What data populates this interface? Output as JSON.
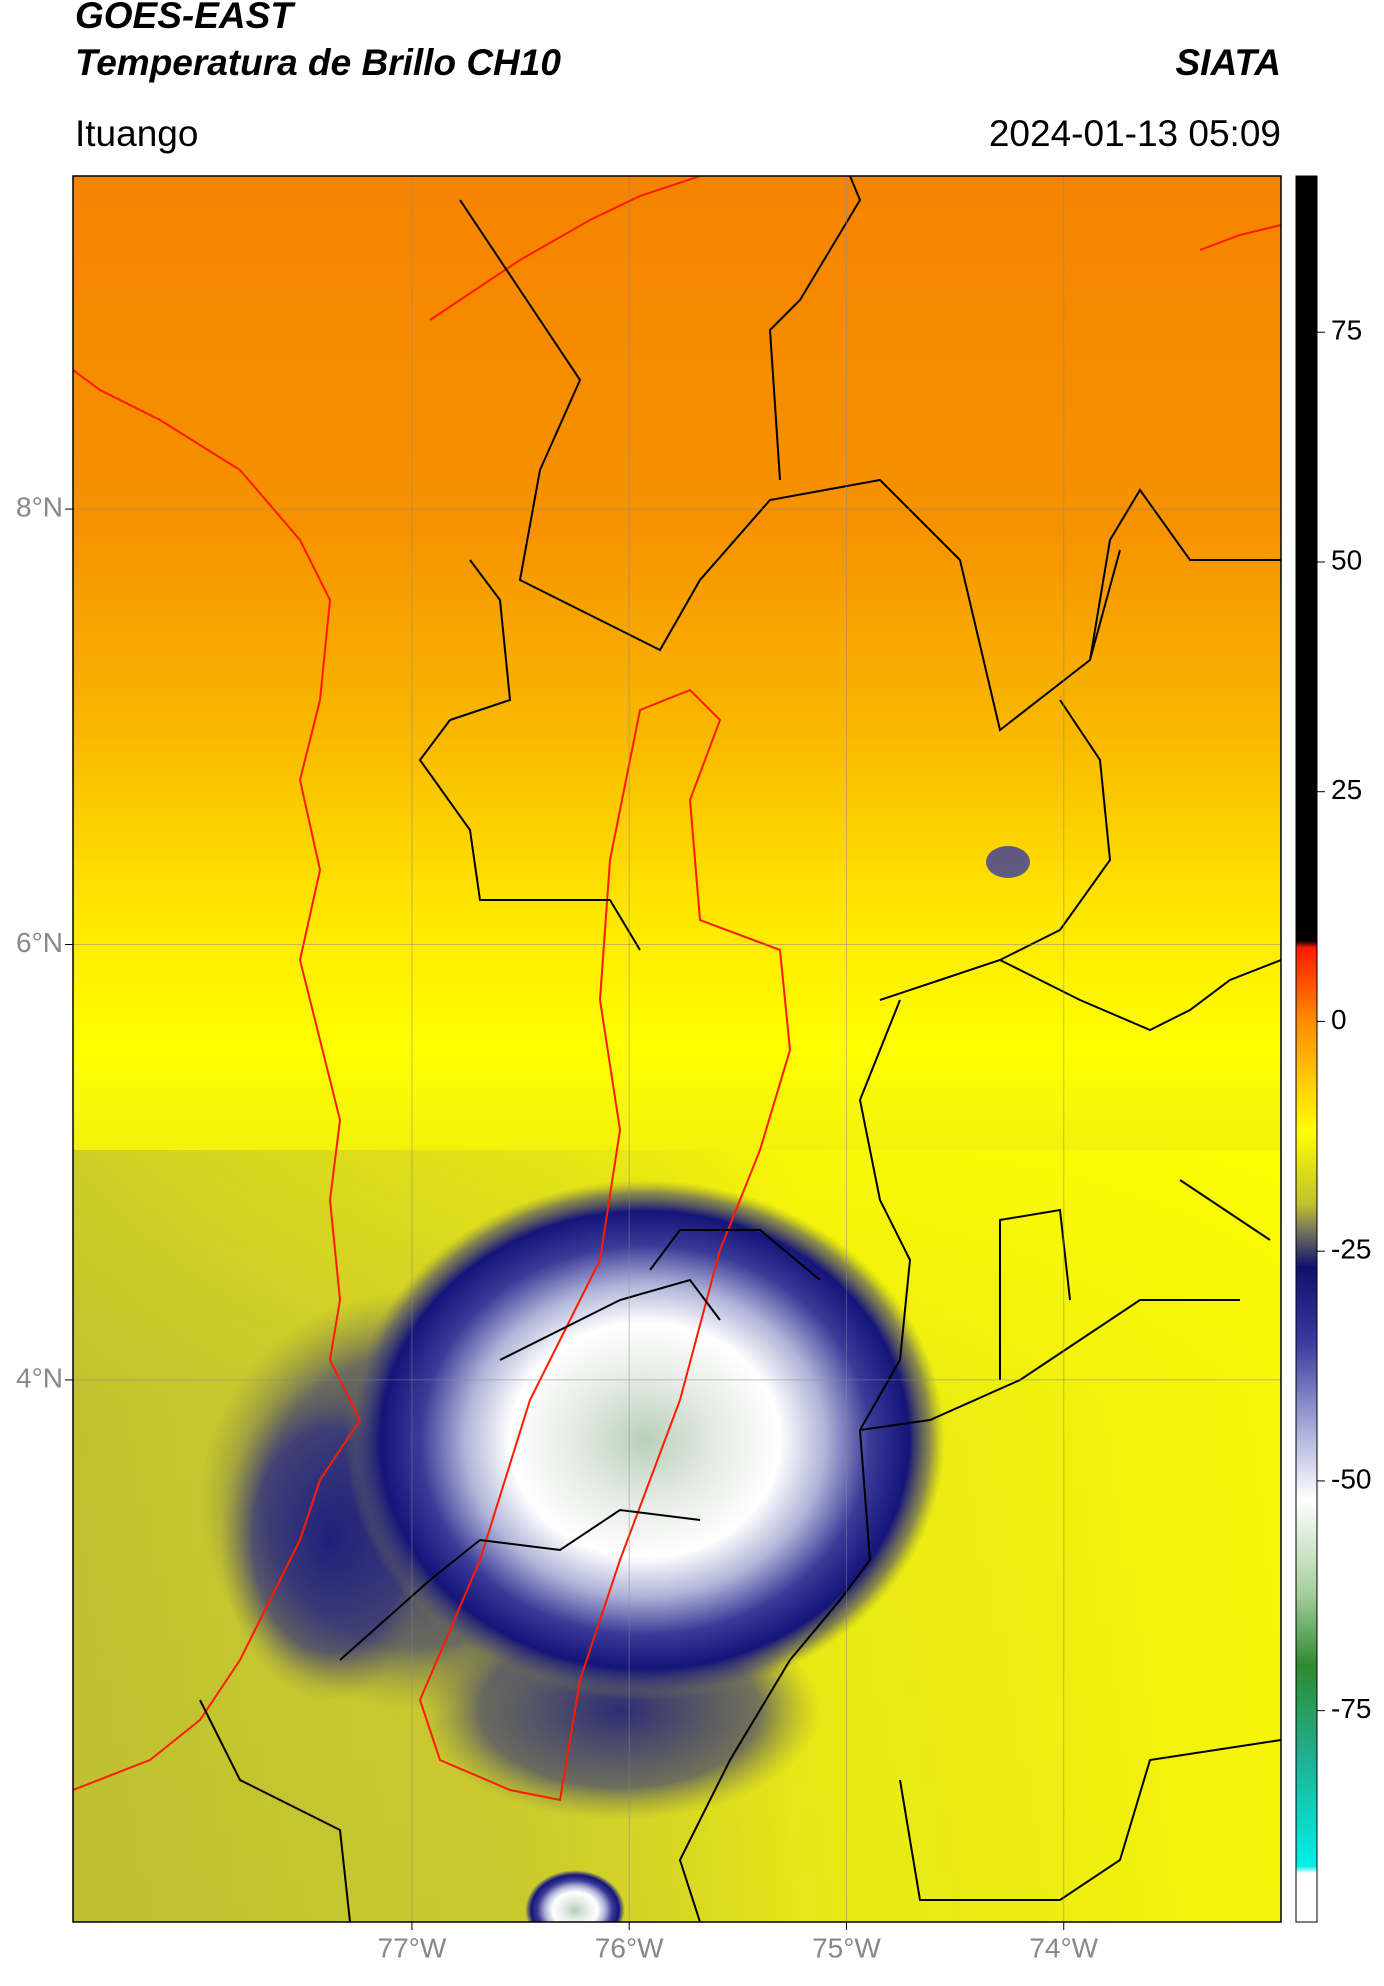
{
  "header": {
    "title": "GOES-EAST",
    "subtitle": "Temperatura de Brillo CH10",
    "organization": "SIATA",
    "location": "Ituango",
    "datetime": "2024-01-13 05:09"
  },
  "map": {
    "xlim": [
      -78.56,
      -73.0
    ],
    "ylim": [
      1.51,
      9.53
    ],
    "xticks": [
      {
        "value": -77,
        "label": "77°W"
      },
      {
        "value": -76,
        "label": "76°W"
      },
      {
        "value": -75,
        "label": "75°W"
      },
      {
        "value": -74,
        "label": "74°W"
      }
    ],
    "yticks": [
      {
        "value": 8,
        "label": "8°N"
      },
      {
        "value": 6,
        "label": "6°N"
      },
      {
        "value": 4,
        "label": "4°N"
      }
    ],
    "grid": true
  },
  "colorbar": {
    "lim": [
      -98,
      92
    ],
    "ticks": [
      75,
      50,
      25,
      0,
      -25,
      -50,
      -75
    ]
  }
}
